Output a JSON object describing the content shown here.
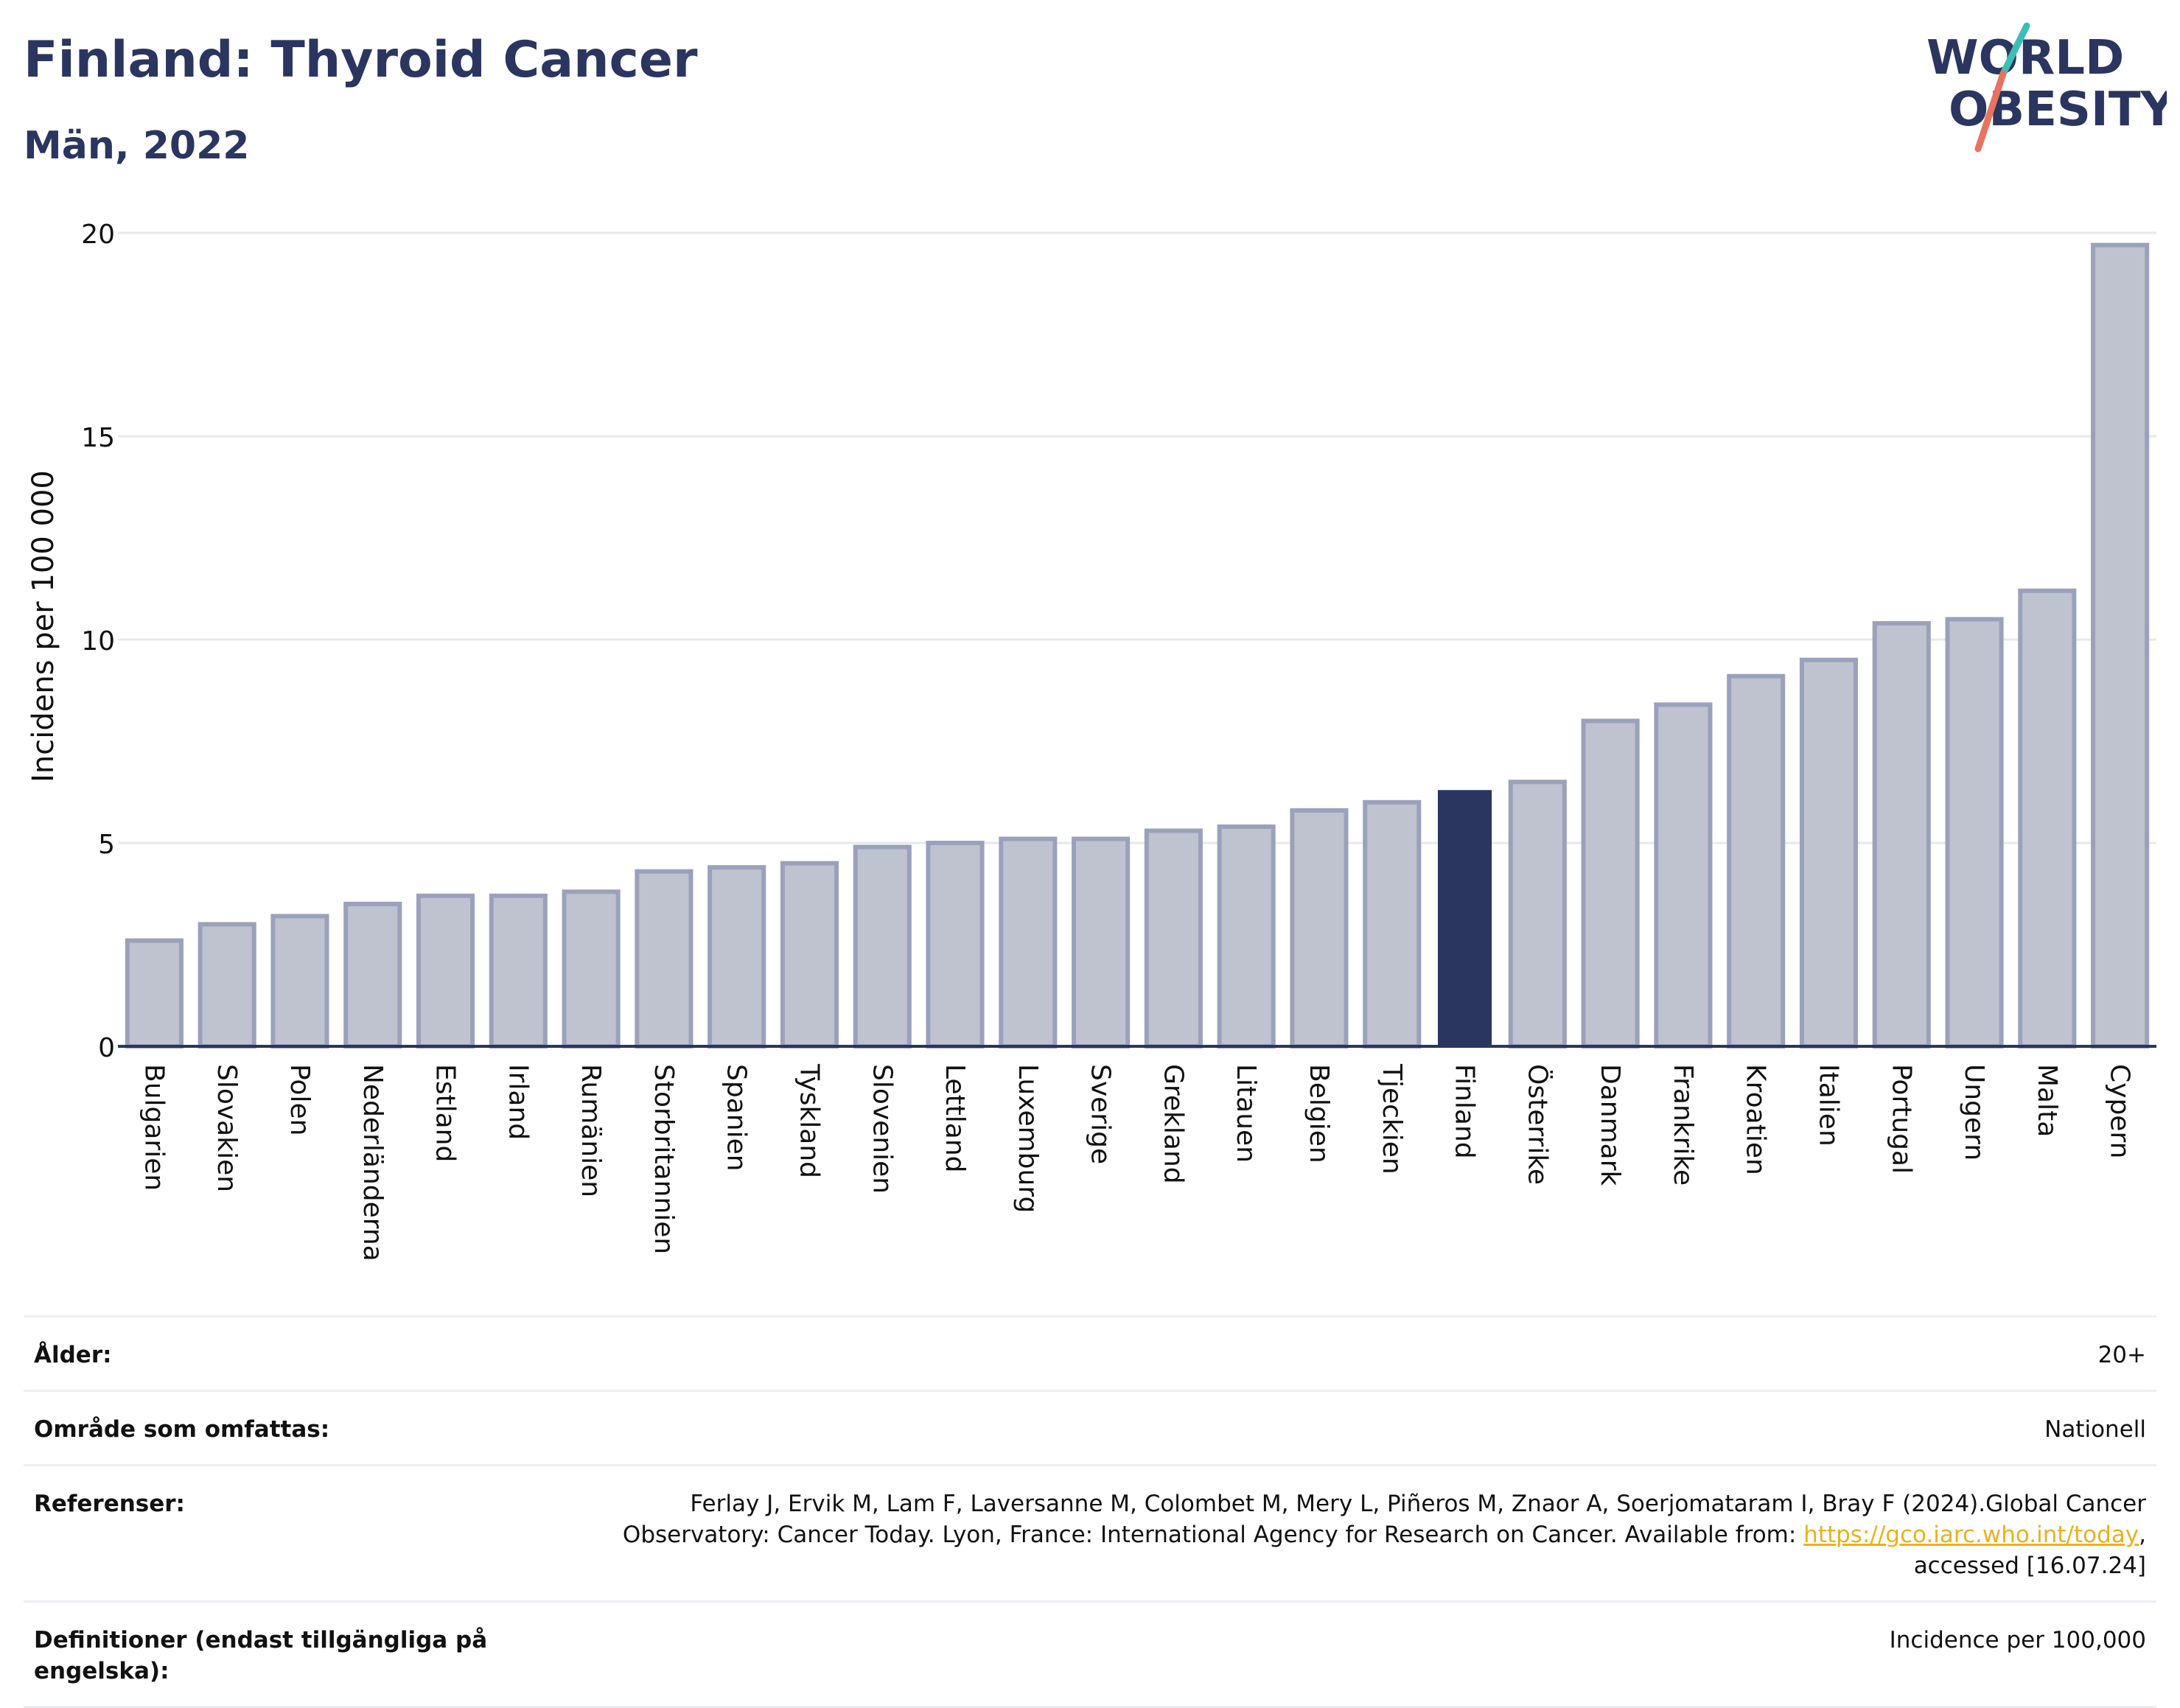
{
  "header": {
    "title": "Finland: Thyroid Cancer",
    "subtitle": "Män, 2022"
  },
  "logo": {
    "line1": "WORLD",
    "line2": "OBESITY",
    "colors": {
      "text": "#2a3560",
      "slash_teal": "#3bbfb5",
      "slash_coral": "#e8735f"
    }
  },
  "chart_data": {
    "type": "bar",
    "title": "Finland: Thyroid Cancer",
    "subtitle": "Män, 2022",
    "xlabel": "",
    "ylabel": "Incidens per 100 000",
    "ylim": [
      0,
      20
    ],
    "yticks": [
      0,
      5,
      10,
      15,
      20
    ],
    "grid": true,
    "highlight": "Finland",
    "colors": {
      "bar": "#bfc3d0",
      "bar_border": "#9aa1bb",
      "highlight": "#2a3560",
      "grid": "#e6e8ee",
      "axis": "#2a3560"
    },
    "categories": [
      "Bulgarien",
      "Slovakien",
      "Polen",
      "Nederländerna",
      "Estland",
      "Irland",
      "Rumänien",
      "Storbritannien",
      "Spanien",
      "Tyskland",
      "Slovenien",
      "Lettland",
      "Luxemburg",
      "Sverige",
      "Grekland",
      "Litauen",
      "Belgien",
      "Tjeckien",
      "Finland",
      "Österrike",
      "Danmark",
      "Frankrike",
      "Kroatien",
      "Italien",
      "Portugal",
      "Ungern",
      "Malta",
      "Cypern"
    ],
    "values": [
      2.6,
      3.0,
      3.2,
      3.5,
      3.7,
      3.7,
      3.8,
      4.3,
      4.4,
      4.5,
      4.9,
      5.0,
      5.1,
      5.1,
      5.3,
      5.4,
      5.8,
      6.0,
      6.3,
      6.5,
      8.0,
      8.4,
      9.1,
      9.5,
      10.4,
      10.5,
      11.2,
      19.7
    ]
  },
  "info": {
    "rows": [
      {
        "label": "Ålder:",
        "value": "20+"
      },
      {
        "label": "Område som omfattas:",
        "value": "Nationell"
      },
      {
        "label": "Referenser:",
        "value_pre": "Ferlay J, Ervik M, Lam F, Laversanne M, Colombet M, Mery L, Piñeros M, Znaor A, Soerjomataram I, Bray F (2024).Global Cancer Observatory: Cancer Today. Lyon, France: International Agency for Research on Cancer. Available from: ",
        "link": "https://gco.iarc.who.int/today",
        "value_post": ", accessed [16.07.24]"
      },
      {
        "label": "Definitioner (endast tillgängliga på engelska):",
        "value": "Incidence per 100,000"
      }
    ]
  }
}
